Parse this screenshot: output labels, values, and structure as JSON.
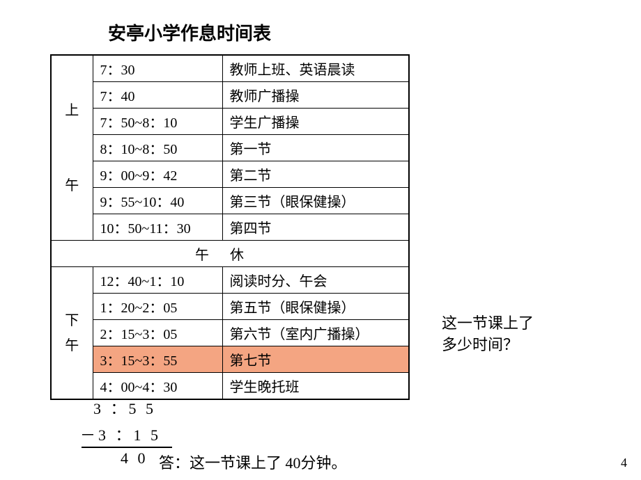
{
  "title": "安亭小学作息时间表",
  "morning_label": "上\n\n\n午",
  "afternoon_label": "下\n午",
  "break_label": "午休",
  "morning_rows": [
    {
      "time": "7：30",
      "activity": "教师上班、英语晨读"
    },
    {
      "time": "7：40",
      "activity": "教师广播操"
    },
    {
      "time": "7：50~8：10",
      "activity": "学生广播操"
    },
    {
      "time": "8：10~8：50",
      "activity": "第一节"
    },
    {
      "time": "9：00~9：42",
      "activity": "第二节"
    },
    {
      "time": "9：55~10：40",
      "activity": "第三节（眼保健操）"
    },
    {
      "time": "10：50~11：30",
      "activity": "第四节"
    }
  ],
  "afternoon_rows": [
    {
      "time": "12：40~1：10",
      "activity": "阅读时分、午会",
      "highlight": false
    },
    {
      "time": "1：20~2：05",
      "activity": "第五节（眼保健操）",
      "highlight": false
    },
    {
      "time": "2：15~3：05",
      "activity": "第六节（室内广播操）",
      "highlight": false
    },
    {
      "time": "3：15~3：55",
      "activity": "第七节",
      "highlight": true
    },
    {
      "time": "4：00~4：30",
      "activity": "学生晚托班",
      "highlight": false
    }
  ],
  "question_line1": "这一节课上了",
  "question_line2": "多少时间？",
  "calc": {
    "top": "3 ：5 5",
    "bottom": "－3 ：1 5",
    "result": "4 0"
  },
  "answer": "答：这一节课上了 40分钟。",
  "page_number": "4",
  "highlight_color": "#f4a582"
}
